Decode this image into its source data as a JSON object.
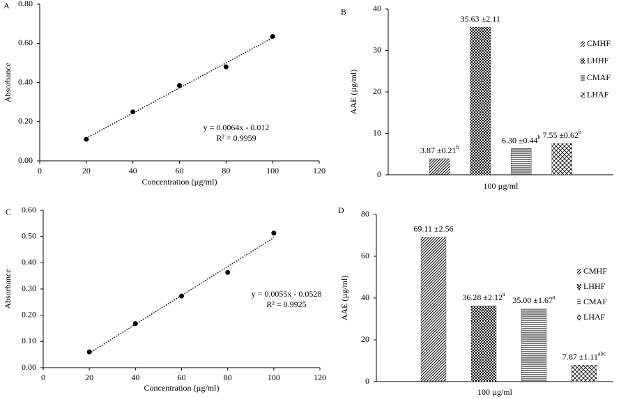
{
  "chart_data": [
    {
      "type": "scatter",
      "panel_label": "A",
      "x": [
        20,
        40,
        60,
        80,
        100
      ],
      "values": [
        0.11,
        0.25,
        0.385,
        0.48,
        0.635
      ],
      "color": "#000000",
      "xlim": [
        0,
        120
      ],
      "xticks": [
        0,
        20,
        40,
        60,
        80,
        100,
        120
      ],
      "ylim": [
        0,
        0.8
      ],
      "yticks": [
        {
          "value": 0,
          "label": "0.00"
        },
        {
          "value": 0.2,
          "label": "0.20"
        },
        {
          "value": 0.4,
          "label": "0.40"
        },
        {
          "value": 0.6,
          "label": "0.60"
        },
        {
          "value": 0.8,
          "label": "0.80"
        }
      ],
      "x_label": "Concentration (µg/ml)",
      "y_label": "Absorbance",
      "annotations": [
        "y = 0.0064x - 0.012",
        "R² = 0.9959"
      ],
      "trendline": true
    },
    {
      "type": "bar",
      "panel_label": "B",
      "categories": [
        "100 µg/ml"
      ],
      "series": [
        {
          "name": "CMHF",
          "color": "#000000",
          "pattern": "diagonal",
          "values": [
            3.87
          ],
          "value_labels": [
            {
              "text": "3.87 ±0.21",
              "sup": "b"
            }
          ]
        },
        {
          "name": "LHHF",
          "color": "#000000",
          "pattern": "checker",
          "values": [
            35.63
          ],
          "value_labels": [
            {
              "text": "35.63 ±2.11"
            }
          ]
        },
        {
          "name": "CMAF",
          "color": "#000000",
          "pattern": "horizontal",
          "values": [
            6.3
          ],
          "value_labels": [
            {
              "text": "6.30 ±0.44",
              "sup": "b"
            }
          ]
        },
        {
          "name": "LHAF",
          "color": "#000000",
          "pattern": "crosshatch",
          "values": [
            7.55
          ],
          "value_labels": [
            {
              "text": "7.55 ±0.62",
              "sup": "b"
            }
          ]
        }
      ],
      "ylim": [
        0,
        40
      ],
      "yticks": [
        0,
        10,
        20,
        30,
        40
      ],
      "y_label": "AAE (µg/ml)"
    },
    {
      "type": "scatter",
      "panel_label": "C",
      "x": [
        20,
        40,
        60,
        80,
        100
      ],
      "values": [
        0.06,
        0.168,
        0.273,
        0.363,
        0.513
      ],
      "color": "#000000",
      "xlim": [
        0,
        120
      ],
      "xticks": [
        0,
        20,
        40,
        60,
        80,
        100,
        120
      ],
      "ylim": [
        0,
        0.6
      ],
      "yticks": [
        {
          "value": 0,
          "label": "0.00"
        },
        {
          "value": 0.1,
          "label": "0.10"
        },
        {
          "value": 0.2,
          "label": "0.20"
        },
        {
          "value": 0.3,
          "label": "0.30"
        },
        {
          "value": 0.4,
          "label": "0.40"
        },
        {
          "value": 0.5,
          "label": "0.50"
        },
        {
          "value": 0.6,
          "label": "0.60"
        }
      ],
      "x_label": "Concentration (µg/ml)",
      "y_label": "Absorbance",
      "annotations": [
        "y = 0.0055x - 0.0528",
        "R² = 0.9925"
      ],
      "trendline": true
    },
    {
      "type": "bar",
      "panel_label": "D",
      "categories": [
        "100 µg/ml"
      ],
      "series": [
        {
          "name": "CMHF",
          "color": "#000000",
          "pattern": "diagonal",
          "values": [
            69.11
          ],
          "value_labels": [
            {
              "text": "69.11 ±2.56"
            }
          ]
        },
        {
          "name": "LHHF",
          "color": "#000000",
          "pattern": "checker",
          "values": [
            36.28
          ],
          "value_labels": [
            {
              "text": "36.28 ±2.12",
              "sup": "a"
            }
          ]
        },
        {
          "name": "CMAF",
          "color": "#000000",
          "pattern": "horizontal",
          "values": [
            35.0
          ],
          "value_labels": [
            {
              "text": "35.00 ±1.67",
              "sup": "a"
            }
          ]
        },
        {
          "name": "LHAF",
          "color": "#000000",
          "pattern": "crosshatch",
          "values": [
            7.87
          ],
          "value_labels": [
            {
              "text": "7.87 ±1.11",
              "sup": "abc"
            }
          ]
        }
      ],
      "ylim": [
        0,
        80
      ],
      "yticks": [
        0,
        20,
        40,
        60,
        80
      ],
      "y_label": "AAE (µg/ml)"
    }
  ]
}
